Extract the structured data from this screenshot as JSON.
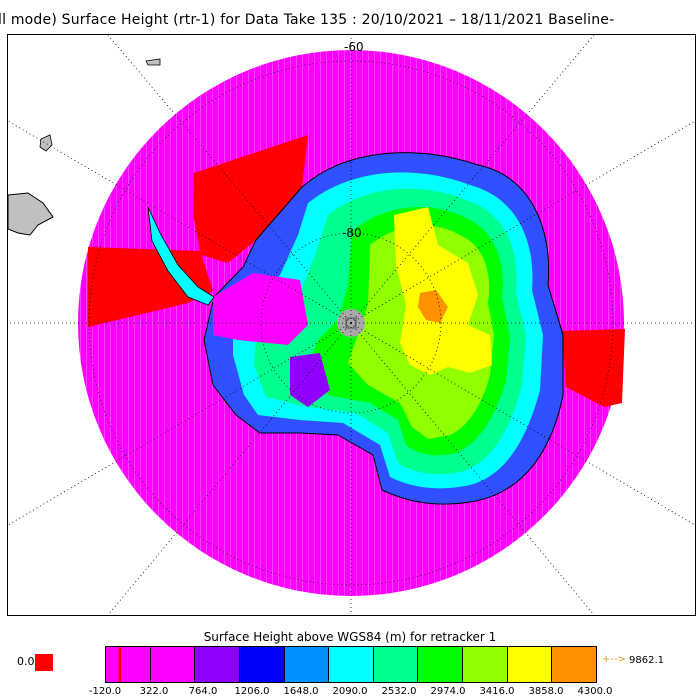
{
  "title": "ll mode) Surface Height (rtr-1) for Data Take 135 : 20/10/2021 – 18/11/2021 Baseline-",
  "map": {
    "lat_labels": [
      "-60",
      "-80"
    ],
    "colors": {
      "ocean_magenta": "#ff00ff",
      "ice_shelf_red": "#ff0000",
      "land_grey": "#c0c0c0",
      "pole_hole": "#a8a8a8"
    }
  },
  "legend": {
    "title": "Surface Height above WGS84 (m) for retracker 1",
    "zero_label": "0.0",
    "zero_color": "#ff0000",
    "colors": [
      "#ff00ff",
      "#ff00ff",
      "#9000ff",
      "#0000ff",
      "#0090ff",
      "#00ffff",
      "#00ff90",
      "#00ff00",
      "#90ff00",
      "#ffff00",
      "#ff9000"
    ],
    "ticks": [
      "-120.0",
      "322.0",
      "764.0",
      "1206.0",
      "1648.0",
      "2090.0",
      "2532.0",
      "2974.0",
      "3416.0",
      "3858.0",
      "4300.0"
    ],
    "max_arrow": "+-->",
    "max_value": "9862.1"
  }
}
